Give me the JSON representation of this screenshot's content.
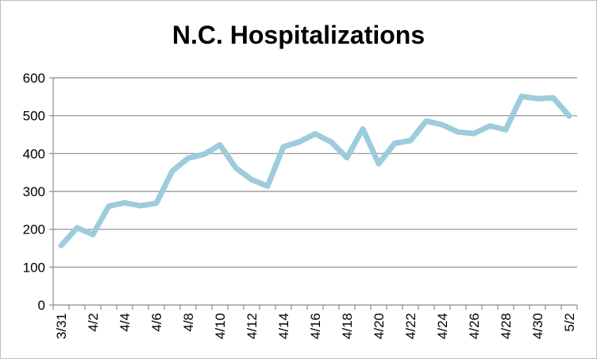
{
  "chart_data": {
    "type": "line",
    "title": "N.C. Hospitalizations",
    "xlabel": "",
    "ylabel": "",
    "ylim": [
      0,
      600
    ],
    "yticks": [
      0,
      100,
      200,
      300,
      400,
      500,
      600
    ],
    "grid": true,
    "legend": "none",
    "x_tick_labels": [
      "3/31",
      "4/2",
      "4/4",
      "4/6",
      "4/8",
      "4/10",
      "4/12",
      "4/14",
      "4/16",
      "4/18",
      "4/20",
      "4/22",
      "4/24",
      "4/26",
      "4/28",
      "4/30",
      "5/2"
    ],
    "x": [
      "3/31",
      "4/1",
      "4/2",
      "4/3",
      "4/4",
      "4/5",
      "4/6",
      "4/7",
      "4/8",
      "4/9",
      "4/10",
      "4/11",
      "4/12",
      "4/13",
      "4/14",
      "4/15",
      "4/16",
      "4/17",
      "4/18",
      "4/19",
      "4/20",
      "4/21",
      "4/22",
      "4/23",
      "4/24",
      "4/25",
      "4/26",
      "4/27",
      "4/28",
      "4/29",
      "4/30",
      "5/1",
      "5/2"
    ],
    "series": [
      {
        "values": [
          157,
          204,
          186,
          261,
          270,
          262,
          269,
          354,
          388,
          398,
          423,
          362,
          331,
          314,
          418,
          431,
          452,
          431,
          389,
          465,
          373,
          427,
          434,
          486,
          476,
          457,
          453,
          473,
          463,
          551,
          545,
          547,
          499
        ]
      }
    ],
    "colors": {
      "line": "#9DCCDC",
      "grid": "#8c8c8c",
      "axis": "#8c8c8c"
    }
  }
}
